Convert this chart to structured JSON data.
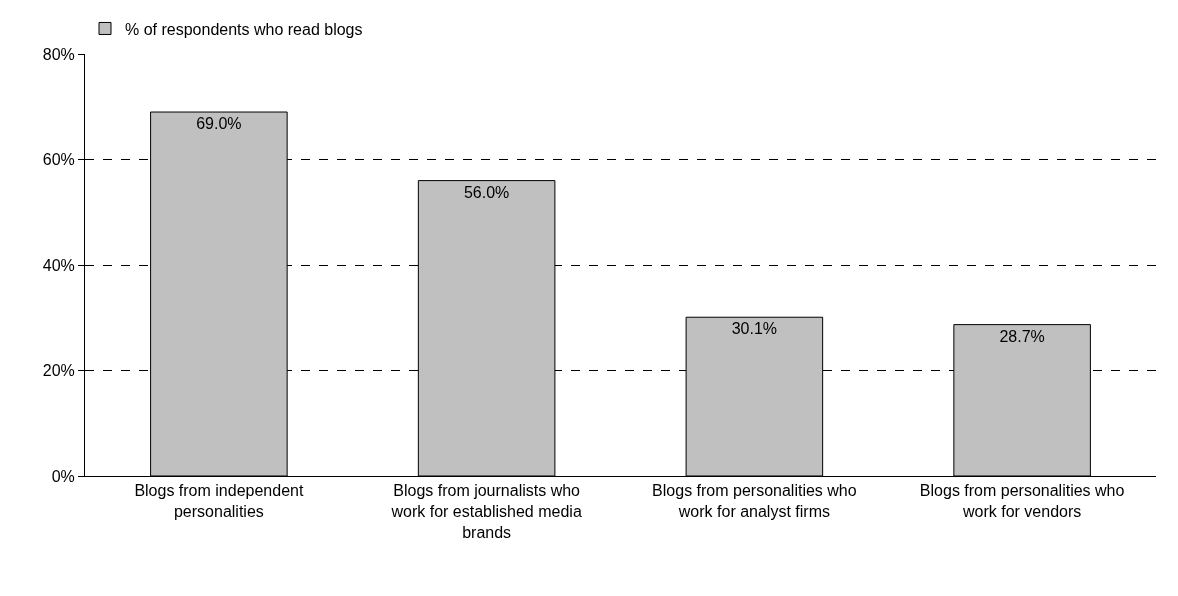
{
  "chart_data": {
    "type": "bar",
    "categories": [
      "Blogs from independent personalities",
      "Blogs from journalists who work for established media brands",
      "Blogs from personalities who work for analyst firms",
      "Blogs from personalities who work for vendors"
    ],
    "series": [
      {
        "name": "% of respondents who read blogs",
        "color": "#c0c0c0",
        "values": [
          69.0,
          56.0,
          30.1,
          28.7
        ],
        "value_labels": [
          "69.0%",
          "56.0%",
          "30.1%",
          "28.7%"
        ]
      }
    ],
    "ylim": [
      0,
      80
    ],
    "yticks": [
      {
        "value": 0,
        "label": "0%"
      },
      {
        "value": 20,
        "label": "20%"
      },
      {
        "value": 40,
        "label": "40%"
      },
      {
        "value": 60,
        "label": "60%"
      },
      {
        "value": 80,
        "label": "80%"
      }
    ],
    "grid": "y",
    "legend": "top left"
  }
}
